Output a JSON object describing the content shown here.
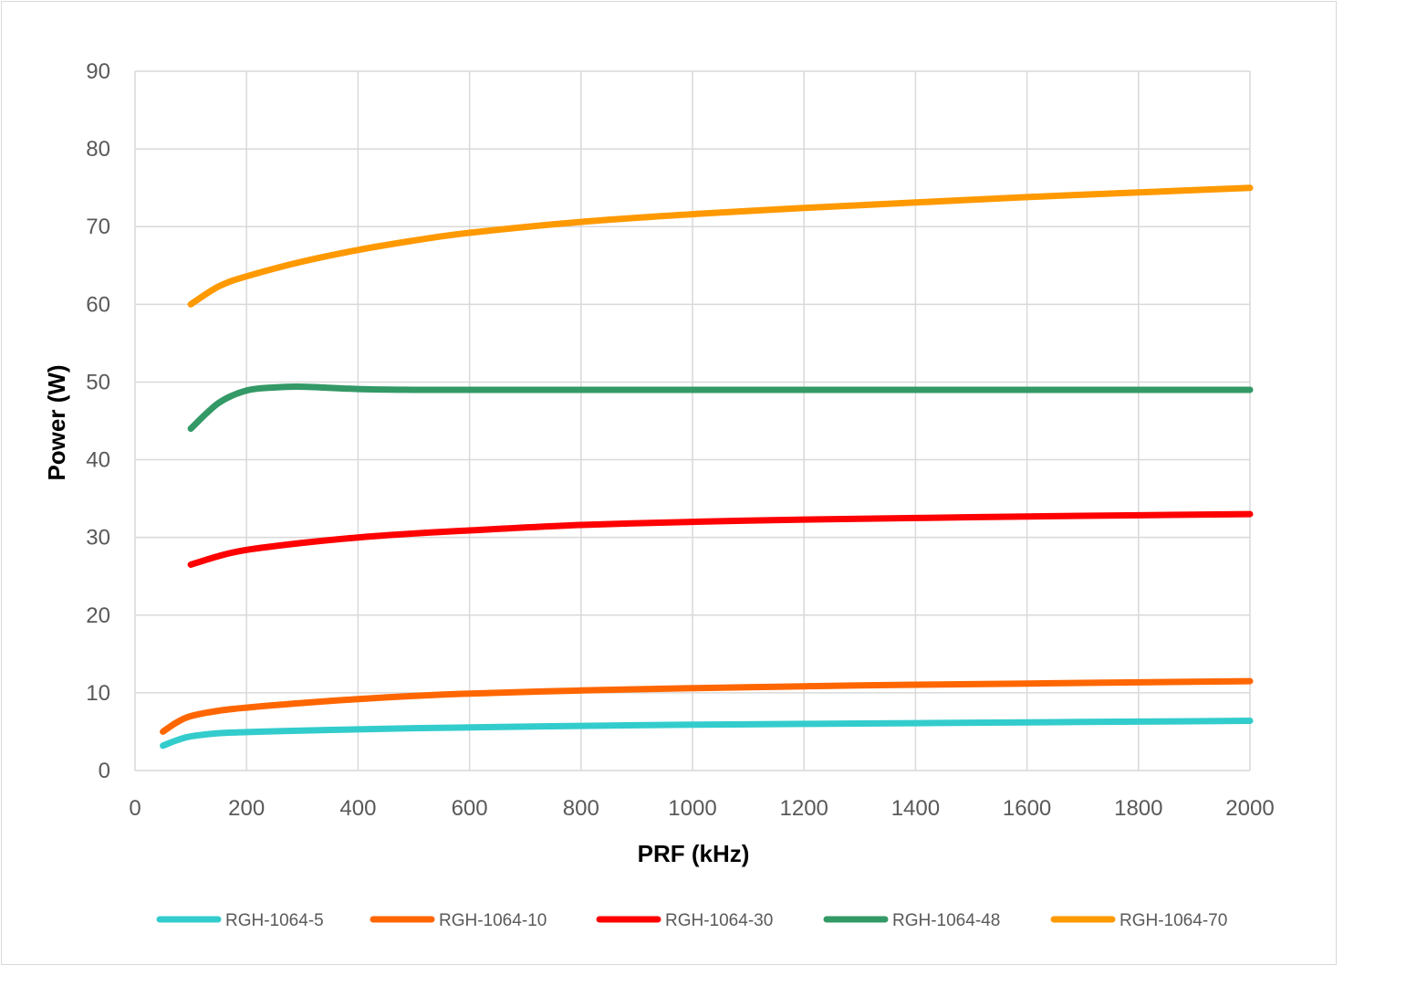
{
  "chart_data": {
    "type": "line",
    "title": "",
    "xlabel": "PRF (kHz)",
    "ylabel": "Power (W)",
    "xlim": [
      0,
      2000
    ],
    "ylim": [
      0,
      90
    ],
    "x_ticks": [
      0,
      200,
      400,
      600,
      800,
      1000,
      1200,
      1400,
      1600,
      1800,
      2000
    ],
    "y_ticks": [
      0,
      10,
      20,
      30,
      40,
      50,
      60,
      70,
      80,
      90
    ],
    "grid": true,
    "legend_position": "bottom",
    "series": [
      {
        "name": "RGH-1064-5",
        "color": "#33cccc",
        "x": [
          50,
          75,
          100,
          150,
          200,
          300,
          400,
          500,
          600,
          800,
          1000,
          1200,
          1400,
          1600,
          1800,
          2000
        ],
        "y": [
          3.2,
          3.9,
          4.4,
          4.8,
          4.95,
          5.15,
          5.3,
          5.45,
          5.55,
          5.75,
          5.9,
          6.0,
          6.1,
          6.2,
          6.3,
          6.4
        ]
      },
      {
        "name": "RGH-1064-10",
        "color": "#ff6600",
        "x": [
          50,
          75,
          100,
          150,
          200,
          300,
          400,
          500,
          600,
          800,
          1000,
          1200,
          1400,
          1600,
          1800,
          2000
        ],
        "y": [
          5.0,
          6.2,
          7.0,
          7.7,
          8.1,
          8.7,
          9.2,
          9.6,
          9.9,
          10.3,
          10.6,
          10.85,
          11.05,
          11.2,
          11.35,
          11.5
        ]
      },
      {
        "name": "RGH-1064-30",
        "color": "#ff0000",
        "x": [
          100,
          150,
          200,
          300,
          400,
          500,
          600,
          800,
          1000,
          1200,
          1400,
          1600,
          1800,
          2000
        ],
        "y": [
          26.5,
          27.6,
          28.4,
          29.3,
          30.0,
          30.5,
          30.9,
          31.6,
          32.0,
          32.3,
          32.5,
          32.7,
          32.85,
          33.0
        ]
      },
      {
        "name": "RGH-1064-48",
        "color": "#339966",
        "x": [
          100,
          150,
          200,
          250,
          300,
          400,
          500,
          600,
          800,
          1000,
          1200,
          1400,
          1600,
          1800,
          2000
        ],
        "y": [
          44.0,
          47.3,
          48.9,
          49.3,
          49.4,
          49.1,
          49.0,
          49.0,
          49.0,
          49.0,
          49.0,
          49.0,
          49.0,
          49.0,
          49.0
        ]
      },
      {
        "name": "RGH-1064-70",
        "color": "#ff9900",
        "x": [
          100,
          150,
          200,
          300,
          400,
          500,
          600,
          800,
          1000,
          1200,
          1400,
          1600,
          1800,
          2000
        ],
        "y": [
          60.0,
          62.3,
          63.6,
          65.5,
          67.0,
          68.2,
          69.2,
          70.6,
          71.6,
          72.4,
          73.1,
          73.8,
          74.4,
          75.0
        ]
      }
    ]
  }
}
